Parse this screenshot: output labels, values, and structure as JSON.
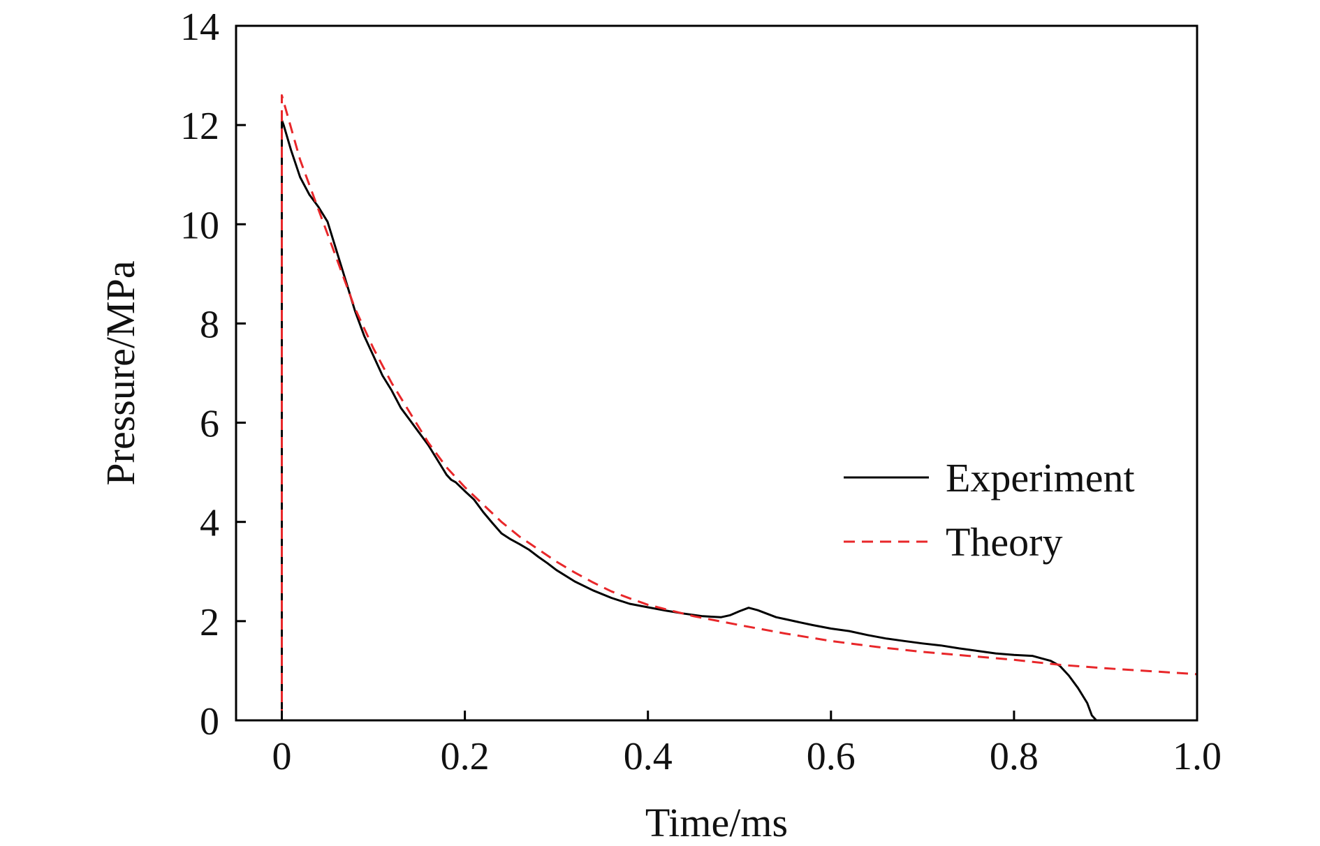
{
  "chart_data": {
    "type": "line",
    "xlabel": "Time/ms",
    "ylabel": "Pressure/MPa",
    "xlim": [
      -0.05,
      1.0
    ],
    "ylim": [
      0,
      14
    ],
    "xticks": [
      0,
      0.2,
      0.4,
      0.6,
      0.8,
      1.0
    ],
    "xtick_labels": [
      "0",
      "0.2",
      "0.4",
      "0.6",
      "0.8",
      "1.0"
    ],
    "yticks": [
      0,
      2,
      4,
      6,
      8,
      10,
      12,
      14
    ],
    "ytick_labels": [
      "0",
      "2",
      "4",
      "6",
      "8",
      "10",
      "12",
      "14"
    ],
    "grid": false,
    "legend_position": "right",
    "series": [
      {
        "name": "Experiment",
        "color": "#000000",
        "style": "solid",
        "x": [
          0,
          0,
          0.002,
          0.01,
          0.02,
          0.03,
          0.04,
          0.05,
          0.06,
          0.07,
          0.08,
          0.09,
          0.1,
          0.11,
          0.12,
          0.13,
          0.14,
          0.15,
          0.16,
          0.17,
          0.18,
          0.185,
          0.19,
          0.2,
          0.21,
          0.22,
          0.23,
          0.24,
          0.25,
          0.26,
          0.27,
          0.28,
          0.29,
          0.3,
          0.32,
          0.34,
          0.36,
          0.38,
          0.4,
          0.42,
          0.44,
          0.46,
          0.48,
          0.49,
          0.5,
          0.51,
          0.52,
          0.53,
          0.54,
          0.55,
          0.56,
          0.58,
          0.6,
          0.62,
          0.64,
          0.66,
          0.68,
          0.7,
          0.72,
          0.74,
          0.76,
          0.78,
          0.8,
          0.82,
          0.83,
          0.84,
          0.85,
          0.86,
          0.87,
          0.88,
          0.885,
          0.89
        ],
        "y": [
          0,
          12.1,
          12.0,
          11.5,
          10.95,
          10.6,
          10.35,
          10.05,
          9.45,
          8.85,
          8.25,
          7.75,
          7.35,
          6.95,
          6.65,
          6.3,
          6.05,
          5.8,
          5.55,
          5.25,
          4.95,
          4.85,
          4.8,
          4.62,
          4.45,
          4.2,
          3.98,
          3.77,
          3.65,
          3.55,
          3.44,
          3.3,
          3.17,
          3.03,
          2.8,
          2.62,
          2.47,
          2.35,
          2.28,
          2.21,
          2.15,
          2.1,
          2.08,
          2.12,
          2.2,
          2.27,
          2.22,
          2.15,
          2.08,
          2.04,
          2.0,
          1.92,
          1.85,
          1.8,
          1.72,
          1.65,
          1.6,
          1.55,
          1.51,
          1.45,
          1.4,
          1.35,
          1.32,
          1.3,
          1.25,
          1.2,
          1.1,
          0.9,
          0.65,
          0.35,
          0.1,
          0.0
        ]
      },
      {
        "name": "Theory",
        "color": "#e8272a",
        "style": "dashed",
        "x": [
          0,
          0,
          0.02,
          0.04,
          0.06,
          0.08,
          0.1,
          0.12,
          0.14,
          0.16,
          0.18,
          0.2,
          0.22,
          0.24,
          0.26,
          0.28,
          0.3,
          0.32,
          0.34,
          0.36,
          0.38,
          0.4,
          0.45,
          0.5,
          0.55,
          0.6,
          0.65,
          0.7,
          0.75,
          0.8,
          0.85,
          0.9,
          0.95,
          1.0
        ],
        "y": [
          0,
          12.6,
          11.3,
          10.3,
          9.3,
          8.3,
          7.5,
          6.8,
          6.2,
          5.6,
          5.1,
          4.7,
          4.35,
          4.0,
          3.7,
          3.45,
          3.2,
          2.98,
          2.78,
          2.6,
          2.46,
          2.33,
          2.1,
          1.92,
          1.75,
          1.6,
          1.48,
          1.38,
          1.3,
          1.22,
          1.12,
          1.05,
          0.99,
          0.93
        ]
      }
    ]
  }
}
